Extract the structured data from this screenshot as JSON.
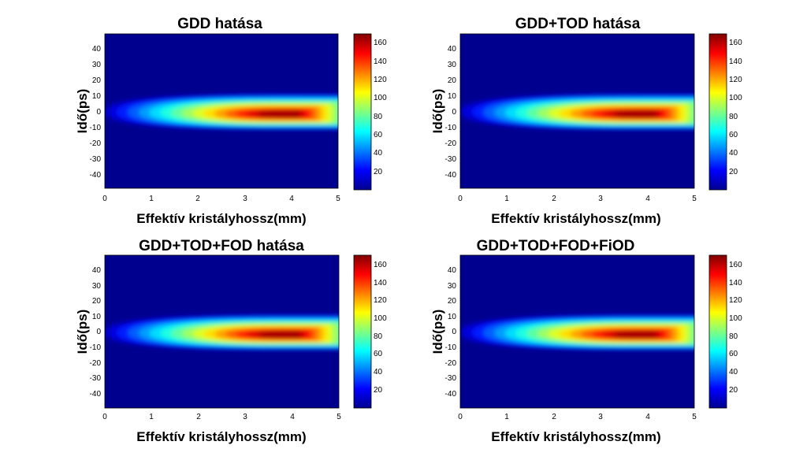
{
  "chart_data": [
    {
      "type": "heatmap",
      "title": "GDD hatása",
      "xlabel": "Effektív kristályhossz(mm)",
      "ylabel": "Idő(ps)",
      "xlim": [
        0,
        5
      ],
      "ylim": [
        -48,
        48
      ],
      "xticks": [
        "0",
        "1",
        "2",
        "3",
        "4",
        "5"
      ],
      "yticks": [
        "40",
        "30",
        "20",
        "10",
        "0",
        "-10",
        "-20",
        "-30",
        "-40"
      ],
      "colorbar": {
        "range": [
          0,
          170
        ],
        "ticks": [
          "160",
          "140",
          "120",
          "100",
          "80",
          "60",
          "40",
          "20"
        ]
      },
      "peak": {
        "x": 3.65,
        "y": -2,
        "value": 165
      },
      "colormap": "jet"
    },
    {
      "type": "heatmap",
      "title": "GDD+TOD hatása",
      "xlabel": "Effektív kristályhossz(mm)",
      "ylabel": "Idő(ps)",
      "xlim": [
        0,
        5
      ],
      "ylim": [
        -48,
        48
      ],
      "xticks": [
        "0",
        "1",
        "2",
        "3",
        "4",
        "5"
      ],
      "yticks": [
        "40",
        "30",
        "20",
        "10",
        "0",
        "-10",
        "-20",
        "-30",
        "-40"
      ],
      "colorbar": {
        "range": [
          0,
          170
        ],
        "ticks": [
          "160",
          "140",
          "120",
          "100",
          "80",
          "60",
          "40",
          "20"
        ]
      },
      "peak": {
        "x": 3.65,
        "y": -2,
        "value": 165
      },
      "colormap": "jet"
    },
    {
      "type": "heatmap",
      "title": "GDD+TOD+FOD hatása",
      "xlabel": "Effektív kristályhossz(mm)",
      "ylabel": "Idő(ps)",
      "xlim": [
        0,
        5
      ],
      "ylim": [
        -48,
        48
      ],
      "xticks": [
        "0",
        "1",
        "2",
        "3",
        "4",
        "5"
      ],
      "yticks": [
        "40",
        "30",
        "20",
        "10",
        "0",
        "-10",
        "-20",
        "-30",
        "-40"
      ],
      "colorbar": {
        "range": [
          0,
          170
        ],
        "ticks": [
          "160",
          "140",
          "120",
          "100",
          "80",
          "60",
          "40",
          "20"
        ]
      },
      "peak": {
        "x": 3.65,
        "y": -2,
        "value": 165
      },
      "colormap": "jet"
    },
    {
      "type": "heatmap",
      "title": "GDD+TOD+FOD+FiOD",
      "xlabel": "Effektív kristályhossz(mm)",
      "ylabel": "Idő(ps)",
      "xlim": [
        0,
        5
      ],
      "ylim": [
        -48,
        48
      ],
      "xticks": [
        "0",
        "1",
        "2",
        "3",
        "4",
        "5"
      ],
      "yticks": [
        "40",
        "30",
        "20",
        "10",
        "0",
        "-10",
        "-20",
        "-30",
        "-40"
      ],
      "colorbar": {
        "range": [
          0,
          170
        ],
        "ticks": [
          "160",
          "140",
          "120",
          "100",
          "80",
          "60",
          "40",
          "20"
        ]
      },
      "peak": {
        "x": 3.65,
        "y": -2,
        "value": 165
      },
      "colormap": "jet"
    }
  ]
}
